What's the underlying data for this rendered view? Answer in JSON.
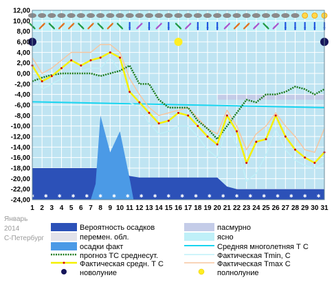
{
  "side_labels": {
    "month": "Январь",
    "year": "2014",
    "city": "С-Петербург"
  },
  "legend": {
    "precip_prob": "Вероятность осадков",
    "overcast": "пасмурно",
    "partly": "перемен. обл.",
    "clear": "ясно",
    "precip_fact": "осадки факт",
    "longterm": "Средняя многолетняя Т С",
    "forecast": "прогноз ТС среднесут.",
    "tmin": "Фактическая Tmin, С",
    "tavg": "Фактическая средн. Т С",
    "tmax": "Фактическая Tmax С",
    "newmoon": "новолуние",
    "fullmoon": "полнолуние"
  },
  "colors": {
    "plot_bg": "#bfe4f2",
    "precip_prob": "#2c51b8",
    "precip_fact": "#4b9ae6",
    "forecast": "#1a7a1a",
    "longterm": "#19d5f0",
    "tavg": "#f5f000",
    "tmin": "#bff0f8",
    "tmax": "#f7c6a0",
    "overcast": "#c4cce8",
    "partly": "#e2e2ea",
    "clear": "#bff0f8",
    "newmoon": "#16165a",
    "fullmoon": "#ffee22"
  },
  "chart_data": {
    "type": "line",
    "x_label": "",
    "y_label": "",
    "x_ticks": [
      "1",
      "2",
      "3",
      "4",
      "5",
      "6",
      "7",
      "8",
      "9",
      "10",
      "11",
      "12",
      "13",
      "14",
      "15",
      "16",
      "17",
      "18",
      "19",
      "20",
      "21",
      "22",
      "23",
      "24",
      "25",
      "26",
      "27",
      "28",
      "29",
      "30",
      "31"
    ],
    "y_ticks": [
      "12,00",
      "10,00",
      "8,00",
      "6,00",
      "4,00",
      "2,00",
      "0,00",
      "-2,00",
      "-4,00",
      "-6,00",
      "-8,00",
      "-10,00",
      "-12,00",
      "-14,00",
      "-16,00",
      "-18,00",
      "-20,00",
      "-22,00",
      "-24,00"
    ],
    "ylim": [
      -24,
      12
    ],
    "xlim": [
      1,
      31
    ],
    "series": [
      {
        "name": "Фактическая средн. Т С",
        "x": [
          1,
          2,
          3,
          4,
          5,
          6,
          7,
          8,
          9,
          10,
          11,
          12,
          13,
          14,
          15,
          16,
          17,
          18,
          19,
          20,
          21,
          22,
          23,
          24,
          25,
          26,
          27,
          28,
          29,
          30,
          31
        ],
        "values": [
          1.5,
          -1.5,
          -0.5,
          1,
          2.5,
          1.5,
          2.5,
          3,
          4,
          3,
          -3.5,
          -5.5,
          -7.5,
          -9.5,
          -9,
          -7.5,
          -8,
          -10,
          -12,
          -13.5,
          -8,
          -11,
          -17,
          -13,
          -12.5,
          -8,
          -12,
          -14.5,
          -16,
          -17,
          -15
        ]
      },
      {
        "name": "Фактическая Tmin, С",
        "x": [
          1,
          2,
          3,
          4,
          5,
          6,
          7,
          8,
          9,
          10,
          11,
          12,
          13,
          14,
          15,
          16,
          17,
          18,
          19,
          20,
          21,
          22,
          23,
          24,
          25,
          26,
          27,
          28,
          29,
          30,
          31
        ],
        "values": [
          0,
          -3,
          -2,
          -1,
          0.5,
          0.5,
          1,
          1,
          3,
          0.5,
          -5.5,
          -6.5,
          -9.5,
          -11.5,
          -11,
          -10,
          -10,
          -12,
          -14.5,
          -16,
          -10,
          -13.5,
          -20.5,
          -19,
          -15.5,
          -10.5,
          -14.5,
          -16.5,
          -17.5,
          -18,
          -17
        ]
      },
      {
        "name": "Фактическая Tmax С",
        "x": [
          1,
          2,
          3,
          4,
          5,
          6,
          7,
          8,
          9,
          10,
          11,
          12,
          13,
          14,
          15,
          16,
          17,
          18,
          19,
          20,
          21,
          22,
          23,
          24,
          25,
          26,
          27,
          28,
          29,
          30,
          31
        ],
        "values": [
          3,
          0,
          1,
          2.5,
          4,
          4,
          4,
          5.5,
          5.5,
          4,
          -1,
          -4,
          -6.5,
          -8,
          -7.5,
          -7,
          -6.5,
          -8.5,
          -10.5,
          -11.5,
          -7,
          -10,
          -14.5,
          -11.5,
          -10,
          -7.5,
          -10,
          -12,
          -14.5,
          -15,
          -10.5
        ]
      },
      {
        "name": "прогноз ТС среднесут.",
        "x": [
          1,
          2,
          3,
          4,
          5,
          6,
          7,
          8,
          9,
          10,
          11,
          12,
          13,
          14,
          15,
          16,
          17,
          18,
          19,
          20,
          21,
          22,
          23,
          24,
          25,
          26,
          27,
          28,
          29,
          30,
          31
        ],
        "values": [
          -1.5,
          -0.8,
          -0.3,
          0,
          0,
          0,
          0,
          -0.5,
          0,
          0.5,
          1.5,
          -2,
          -2,
          -5,
          -6.5,
          -6.5,
          -6.5,
          -9,
          -10.5,
          -12.5,
          -10,
          -7.5,
          -5,
          -5.5,
          -4,
          -4,
          -3.5,
          -2.5,
          -3,
          -4,
          -3
        ]
      },
      {
        "name": "Средняя многолетняя Т С",
        "x": [
          1,
          31
        ],
        "values": [
          -5.4,
          -6.5
        ]
      },
      {
        "name": "Вероятность осадков",
        "x": [
          1,
          2,
          3,
          4,
          5,
          6,
          7,
          8,
          9,
          10,
          11,
          12,
          13,
          14,
          15,
          16,
          17,
          18,
          19,
          20,
          21,
          22,
          23,
          24,
          25,
          26,
          27,
          28,
          29,
          30,
          31
        ],
        "values": [
          -18,
          -18,
          -18,
          -18,
          -18,
          -18,
          -18,
          -18,
          -18,
          -18,
          -19.5,
          -19.8,
          -19.8,
          -19.8,
          -19.8,
          -19.8,
          -19.8,
          -19.8,
          -19.8,
          -19.8,
          -21.5,
          -22,
          -22,
          -22,
          -22,
          -22,
          -22,
          -22,
          -22,
          -22,
          -22
        ]
      },
      {
        "name": "осадки факт",
        "x": [
          1,
          6,
          7,
          7.5,
          8,
          9,
          10,
          11,
          11.4
        ],
        "values": [
          -24,
          -24,
          -24,
          -21,
          -8,
          -15,
          -11,
          -20,
          -24
        ]
      }
    ],
    "sky_bands": {
      "overcast_region": {
        "x_from": 20,
        "x_to": 31,
        "y_from": -5,
        "y_to": -4
      },
      "clear_region": {
        "x_from": 1,
        "x_to": 31,
        "y_from": 8,
        "y_to": 12
      }
    },
    "moon_phases": {
      "newmoon_days": [
        1,
        31
      ],
      "fullmoon_day": 16,
      "y": 6
    },
    "weather_icons_row1": [
      "cloud",
      "cloud",
      "cloud",
      "cloud",
      "cloud",
      "cloud",
      "cloud",
      "cloud",
      "cloud",
      "cloud",
      "cloud",
      "cloud",
      "cloud",
      "cloud",
      "cloud",
      "cloud",
      "cloud",
      "cloud",
      "cloud",
      "cloud",
      "cloud",
      "cloud",
      "cloud",
      "cloud",
      "cloud",
      "cloud",
      "cloud",
      "cloud",
      "sun",
      "sun",
      "sun"
    ],
    "wind_arrows_row": [
      "SE",
      "NE",
      "SE",
      "NE",
      "NE",
      "SE",
      "NE",
      "SE",
      "NE",
      "SE",
      "S",
      "SW",
      "S",
      "SW",
      "S",
      "SE",
      "SW",
      "S",
      "S",
      "S",
      "SW",
      "NE",
      "NE",
      "SW",
      "SE",
      "SW",
      "S",
      "S",
      "S",
      "S",
      "S"
    ],
    "grid": true
  }
}
